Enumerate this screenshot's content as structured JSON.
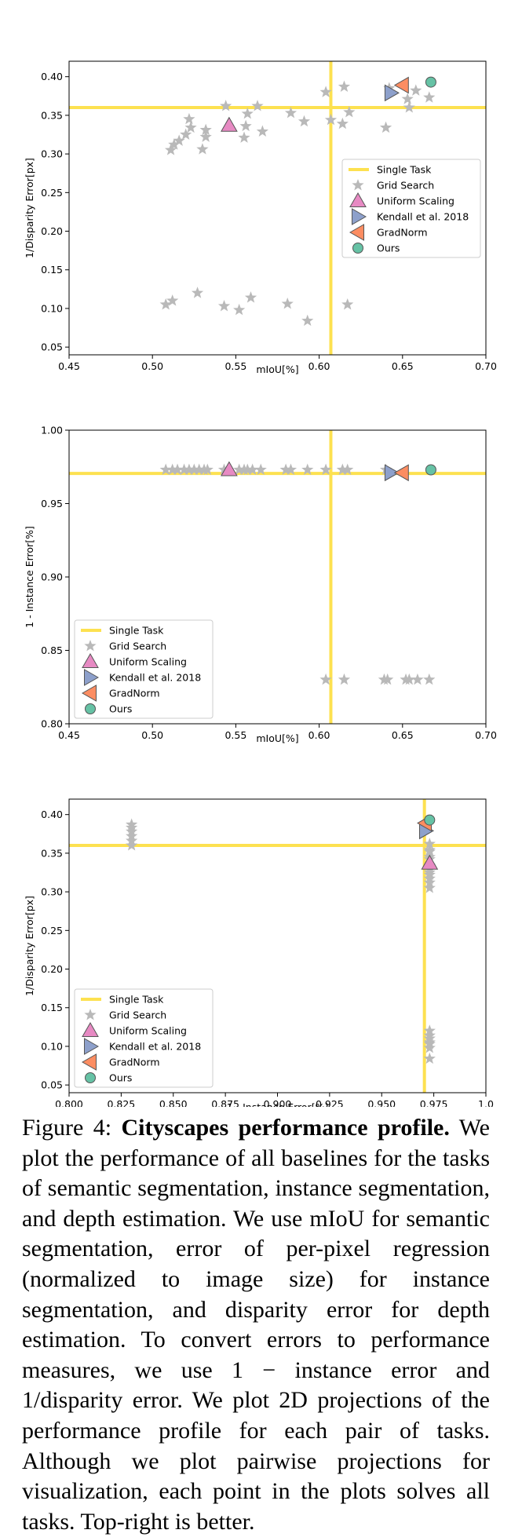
{
  "chart_data": [
    {
      "type": "scatter",
      "title": "",
      "xlabel": "mIoU[%]",
      "ylabel": "1/Disparity Error[px]",
      "xlim": [
        0.45,
        0.7
      ],
      "ylim": [
        0.04,
        0.42
      ],
      "xticks": [
        0.45,
        0.5,
        0.55,
        0.6,
        0.65,
        0.7
      ],
      "xtick_labels": [
        "0.45",
        "0.50",
        "0.55",
        "0.60",
        "0.65",
        "0.70"
      ],
      "yticks": [
        0.05,
        0.1,
        0.15,
        0.2,
        0.25,
        0.3,
        0.35,
        0.4
      ],
      "ytick_labels": [
        "0.05",
        "0.10",
        "0.15",
        "0.20",
        "0.25",
        "0.30",
        "0.35",
        "0.40"
      ],
      "legend_position": "center-right",
      "single_task": {
        "label": "Single Task",
        "x": 0.607,
        "y": 0.36
      },
      "series": [
        {
          "name": "Grid Search",
          "marker": "star",
          "points": [
            [
              0.508,
              0.105
            ],
            [
              0.512,
              0.11
            ],
            [
              0.527,
              0.12
            ],
            [
              0.543,
              0.103
            ],
            [
              0.552,
              0.098
            ],
            [
              0.559,
              0.114
            ],
            [
              0.581,
              0.106
            ],
            [
              0.593,
              0.084
            ],
            [
              0.617,
              0.105
            ],
            [
              0.511,
              0.305
            ],
            [
              0.513,
              0.312
            ],
            [
              0.516,
              0.317
            ],
            [
              0.52,
              0.325
            ],
            [
              0.522,
              0.345
            ],
            [
              0.523,
              0.334
            ],
            [
              0.53,
              0.306
            ],
            [
              0.532,
              0.322
            ],
            [
              0.532,
              0.331
            ],
            [
              0.544,
              0.362
            ],
            [
              0.555,
              0.321
            ],
            [
              0.556,
              0.336
            ],
            [
              0.557,
              0.352
            ],
            [
              0.563,
              0.362
            ],
            [
              0.566,
              0.329
            ],
            [
              0.583,
              0.353
            ],
            [
              0.591,
              0.342
            ],
            [
              0.604,
              0.38
            ],
            [
              0.607,
              0.344
            ],
            [
              0.614,
              0.339
            ],
            [
              0.615,
              0.387
            ],
            [
              0.618,
              0.354
            ],
            [
              0.64,
              0.334
            ],
            [
              0.642,
              0.385
            ],
            [
              0.653,
              0.371
            ],
            [
              0.654,
              0.36
            ],
            [
              0.658,
              0.382
            ],
            [
              0.666,
              0.373
            ]
          ]
        },
        {
          "name": "Uniform Scaling",
          "marker": "triangle-up",
          "points": [
            [
              0.546,
              0.337
            ]
          ]
        },
        {
          "name": "Kendall et al. 2018",
          "marker": "triangle-right",
          "points": [
            [
              0.643,
              0.379
            ]
          ]
        },
        {
          "name": "GradNorm",
          "marker": "triangle-left",
          "points": [
            [
              0.65,
              0.389
            ]
          ]
        },
        {
          "name": "Ours",
          "marker": "circle",
          "points": [
            [
              0.667,
              0.393
            ]
          ]
        }
      ]
    },
    {
      "type": "scatter",
      "title": "",
      "xlabel": "mIoU[%]",
      "ylabel": "1 - Instance Error[%]",
      "xlim": [
        0.45,
        0.7
      ],
      "ylim": [
        0.8,
        1.0
      ],
      "xticks": [
        0.45,
        0.5,
        0.55,
        0.6,
        0.65,
        0.7
      ],
      "xtick_labels": [
        "0.45",
        "0.50",
        "0.55",
        "0.60",
        "0.65",
        "0.70"
      ],
      "yticks": [
        0.8,
        0.85,
        0.9,
        0.95,
        1.0
      ],
      "ytick_labels": [
        "0.80",
        "0.85",
        "0.90",
        "0.95",
        "1.00"
      ],
      "legend_position": "lower-left",
      "single_task": {
        "label": "Single Task",
        "x": 0.607,
        "y": 0.9705
      },
      "series": [
        {
          "name": "Grid Search",
          "marker": "star",
          "points": [
            [
              0.508,
              0.973
            ],
            [
              0.512,
              0.973
            ],
            [
              0.515,
              0.973
            ],
            [
              0.519,
              0.973
            ],
            [
              0.522,
              0.973
            ],
            [
              0.525,
              0.973
            ],
            [
              0.528,
              0.973
            ],
            [
              0.531,
              0.973
            ],
            [
              0.533,
              0.973
            ],
            [
              0.543,
              0.973
            ],
            [
              0.552,
              0.973
            ],
            [
              0.555,
              0.973
            ],
            [
              0.557,
              0.973
            ],
            [
              0.56,
              0.973
            ],
            [
              0.565,
              0.973
            ],
            [
              0.58,
              0.973
            ],
            [
              0.583,
              0.973
            ],
            [
              0.593,
              0.973
            ],
            [
              0.604,
              0.973
            ],
            [
              0.614,
              0.973
            ],
            [
              0.617,
              0.973
            ],
            [
              0.64,
              0.973
            ],
            [
              0.604,
              0.83
            ],
            [
              0.615,
              0.83
            ],
            [
              0.639,
              0.83
            ],
            [
              0.641,
              0.83
            ],
            [
              0.652,
              0.83
            ],
            [
              0.654,
              0.83
            ],
            [
              0.659,
              0.83
            ],
            [
              0.666,
              0.83
            ]
          ]
        },
        {
          "name": "Uniform Scaling",
          "marker": "triangle-up",
          "points": [
            [
              0.546,
              0.973
            ]
          ]
        },
        {
          "name": "Kendall et al. 2018",
          "marker": "triangle-right",
          "points": [
            [
              0.643,
              0.971
            ]
          ]
        },
        {
          "name": "GradNorm",
          "marker": "triangle-left",
          "points": [
            [
              0.65,
              0.971
            ]
          ]
        },
        {
          "name": "Ours",
          "marker": "circle",
          "points": [
            [
              0.667,
              0.973
            ]
          ]
        }
      ]
    },
    {
      "type": "scatter",
      "title": "",
      "xlabel": "1 - Instance Error[%]",
      "ylabel": "1/Disparity Error[px]",
      "xlim": [
        0.8,
        1.0
      ],
      "ylim": [
        0.04,
        0.42
      ],
      "xticks": [
        0.8,
        0.825,
        0.85,
        0.875,
        0.9,
        0.925,
        0.95,
        0.975,
        1.0
      ],
      "xtick_labels": [
        "0.800",
        "0.825",
        "0.850",
        "0.875",
        "0.900",
        "0.925",
        "0.950",
        "0.975",
        "1.0"
      ],
      "yticks": [
        0.05,
        0.1,
        0.15,
        0.2,
        0.25,
        0.3,
        0.35,
        0.4
      ],
      "ytick_labels": [
        "0.05",
        "0.10",
        "0.15",
        "0.20",
        "0.25",
        "0.30",
        "0.35",
        "0.40"
      ],
      "legend_position": "lower-left",
      "single_task": {
        "label": "Single Task",
        "x": 0.9705,
        "y": 0.36
      },
      "series": [
        {
          "name": "Grid Search",
          "marker": "star",
          "points": [
            [
              0.83,
              0.36
            ],
            [
              0.83,
              0.366
            ],
            [
              0.83,
              0.372
            ],
            [
              0.83,
              0.378
            ],
            [
              0.83,
              0.383
            ],
            [
              0.83,
              0.387
            ],
            [
              0.973,
              0.305
            ],
            [
              0.973,
              0.312
            ],
            [
              0.973,
              0.317
            ],
            [
              0.973,
              0.322
            ],
            [
              0.973,
              0.325
            ],
            [
              0.973,
              0.329
            ],
            [
              0.973,
              0.334
            ],
            [
              0.973,
              0.342
            ],
            [
              0.973,
              0.345
            ],
            [
              0.973,
              0.352
            ],
            [
              0.973,
              0.354
            ],
            [
              0.973,
              0.362
            ],
            [
              0.973,
              0.084
            ],
            [
              0.973,
              0.098
            ],
            [
              0.973,
              0.103
            ],
            [
              0.973,
              0.105
            ],
            [
              0.973,
              0.11
            ],
            [
              0.973,
              0.114
            ],
            [
              0.973,
              0.12
            ]
          ]
        },
        {
          "name": "Uniform Scaling",
          "marker": "triangle-up",
          "points": [
            [
              0.973,
              0.337
            ]
          ]
        },
        {
          "name": "Kendall et al. 2018",
          "marker": "triangle-right",
          "points": [
            [
              0.971,
              0.379
            ]
          ]
        },
        {
          "name": "GradNorm",
          "marker": "triangle-left",
          "points": [
            [
              0.971,
              0.389
            ]
          ]
        },
        {
          "name": "Ours",
          "marker": "circle",
          "points": [
            [
              0.973,
              0.393
            ]
          ]
        }
      ]
    }
  ],
  "styles": {
    "single_task": "#fde150",
    "grid_search": "#b9b9b9",
    "uniform_scaling": "#e78ac3",
    "kendall": "#8da0cb",
    "gradnorm": "#fc8d62",
    "ours": "#66c2a5"
  },
  "caption": {
    "prefix": "Figure 4:",
    "title": "Cityscapes performance profile.",
    "body": "We plot the performance of all baselines for the tasks of semantic segmentation, instance segmentation, and depth estimation. We use mIoU for semantic segmentation, error of per-pixel regression (normalized to image size) for instance segmentation, and disparity error for depth estimation. To convert errors to performance measures, we use 1 − instance error and 1/disparity error. We plot 2D projections of the performance profile for each pair of tasks. Although we plot pairwise projections for visualization, each point in the plots solves all tasks. Top-right is better."
  }
}
